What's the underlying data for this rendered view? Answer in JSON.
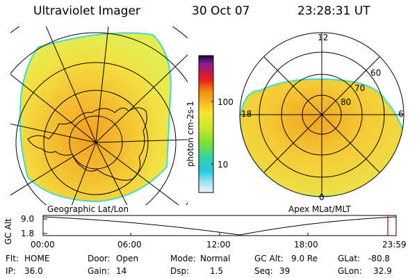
{
  "header": {
    "instrument": "Ultraviolet Imager",
    "date": "30 Oct 07",
    "time": "23:28:31 UT"
  },
  "colorbar": {
    "label": "photon cm-2s-1",
    "ticks": [
      "100",
      "10"
    ]
  },
  "geo_panel": {
    "caption": "Geographic Lat/Lon",
    "colors": {
      "fill_high": "#f4a020",
      "fill_mid": "#f5d43a",
      "fill_low": "#dcea55",
      "edge": "#44d9c8"
    }
  },
  "apex_panel": {
    "caption": "Apex MLat/MLT",
    "lat_labels": [
      "60",
      "70",
      "80"
    ],
    "mlt_labels": {
      "top": "12",
      "left": "18",
      "right": "6",
      "bottom": "0"
    }
  },
  "altitude_plot": {
    "ylabel": "GC Alt",
    "y_ticks": [
      "9.0",
      "1.8"
    ],
    "x_ticks": [
      "00:00",
      "06:00",
      "12:00",
      "18:00",
      "23:59"
    ],
    "marker_color": "#d0201a"
  },
  "footer": {
    "flt_label": "Flt:",
    "flt_value": "HOME",
    "door_label": "Door:",
    "door_value": "Open",
    "mode_label": "Mode:",
    "mode_value": "Normal",
    "gcalt_label": "GC Alt:",
    "gcalt_value": "9.0 Re",
    "glat_label": "GLat:",
    "glat_value": "-80.8",
    "ip_label": "IP:",
    "ip_value": "36.0",
    "gain_label": "Gain:",
    "gain_value": "14",
    "dsp_label": "Dsp:",
    "dsp_value": "1.5",
    "seq_label": "Seq:",
    "seq_value": "39",
    "glon_label": "GLon:",
    "glon_value": "32.9"
  }
}
